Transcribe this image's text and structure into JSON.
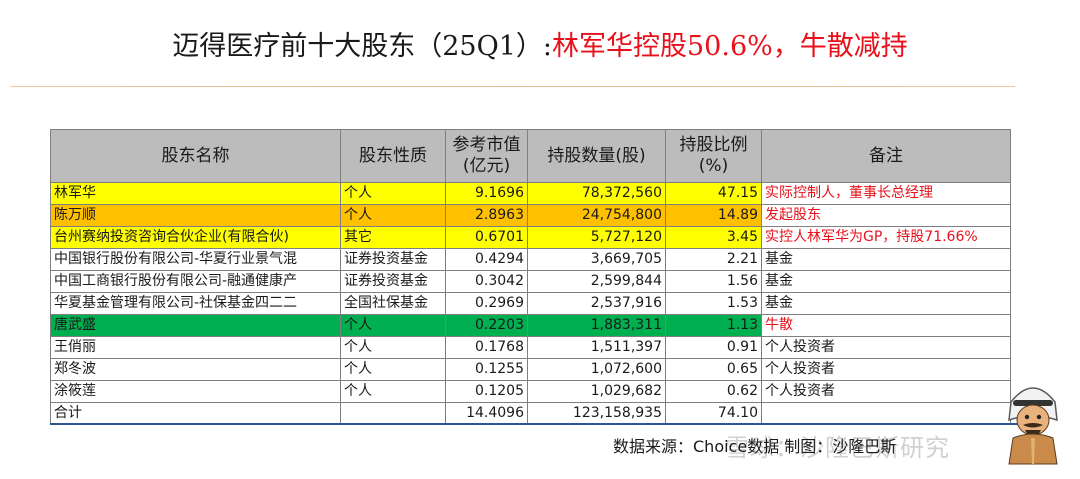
{
  "title": {
    "black": "迈得医疗前十大股东（25Q1）:",
    "red": "林军华控股50.6%，牛散减持"
  },
  "table": {
    "headers": [
      "股东名称",
      "股东性质",
      "参考市值(亿元)",
      "持股数量(股)",
      "持股比例(%)",
      "备注"
    ],
    "rows": [
      {
        "name": "林军华",
        "type": "个人",
        "value": "9.1696",
        "shares": "78,372,560",
        "ratio": "47.15",
        "note": "实际控制人，董事长总经理",
        "highlight": "yellow",
        "note_color": "#e8101a"
      },
      {
        "name": "陈万顺",
        "type": "个人",
        "value": "2.8963",
        "shares": "24,754,800",
        "ratio": "14.89",
        "note": "发起股东",
        "highlight": "orange",
        "note_color": "#e8101a"
      },
      {
        "name": "台州赛纳投资咨询合伙企业(有限合伙)",
        "type": "其它",
        "value": "0.6701",
        "shares": "5,727,120",
        "ratio": "3.45",
        "note": "实控人林军华为GP，持股71.66%",
        "highlight": "yellow",
        "note_color": "#e8101a"
      },
      {
        "name": "中国银行股份有限公司-华夏行业景气混",
        "type": "证券投资基金",
        "value": "0.4294",
        "shares": "3,669,705",
        "ratio": "2.21",
        "note": "基金",
        "highlight": "none",
        "note_color": "#1a1a1a"
      },
      {
        "name": "中国工商银行股份有限公司-融通健康产",
        "type": "证券投资基金",
        "value": "0.3042",
        "shares": "2,599,844",
        "ratio": "1.56",
        "note": "基金",
        "highlight": "none",
        "note_color": "#1a1a1a"
      },
      {
        "name": "华夏基金管理有限公司-社保基金四二二",
        "type": "全国社保基金",
        "value": "0.2969",
        "shares": "2,537,916",
        "ratio": "1.53",
        "note": "基金",
        "highlight": "none",
        "note_color": "#1a1a1a"
      },
      {
        "name": "唐武盛",
        "type": "个人",
        "value": "0.2203",
        "shares": "1,883,311",
        "ratio": "1.13",
        "note": "牛散",
        "highlight": "green",
        "note_color": "#e8101a"
      },
      {
        "name": "王俏丽",
        "type": "个人",
        "value": "0.1768",
        "shares": "1,511,397",
        "ratio": "0.91",
        "note": "个人投资者",
        "highlight": "none",
        "note_color": "#1a1a1a"
      },
      {
        "name": "郑冬波",
        "type": "个人",
        "value": "0.1255",
        "shares": "1,072,600",
        "ratio": "0.65",
        "note": "个人投资者",
        "highlight": "none",
        "note_color": "#1a1a1a"
      },
      {
        "name": "涂筱莲",
        "type": "个人",
        "value": "0.1205",
        "shares": "1,029,682",
        "ratio": "0.62",
        "note": "个人投资者",
        "highlight": "none",
        "note_color": "#1a1a1a"
      }
    ],
    "total": {
      "name": "合计",
      "type": "",
      "value": "14.4096",
      "shares": "123,158,935",
      "ratio": "74.10",
      "note": ""
    }
  },
  "footer": {
    "source": "数据来源：Choice数据 制图：沙隆巴斯",
    "watermark": "雪球：沙隆巴斯研究"
  },
  "mascot": {
    "icon": "cartoon-arab-mascot-icon"
  }
}
